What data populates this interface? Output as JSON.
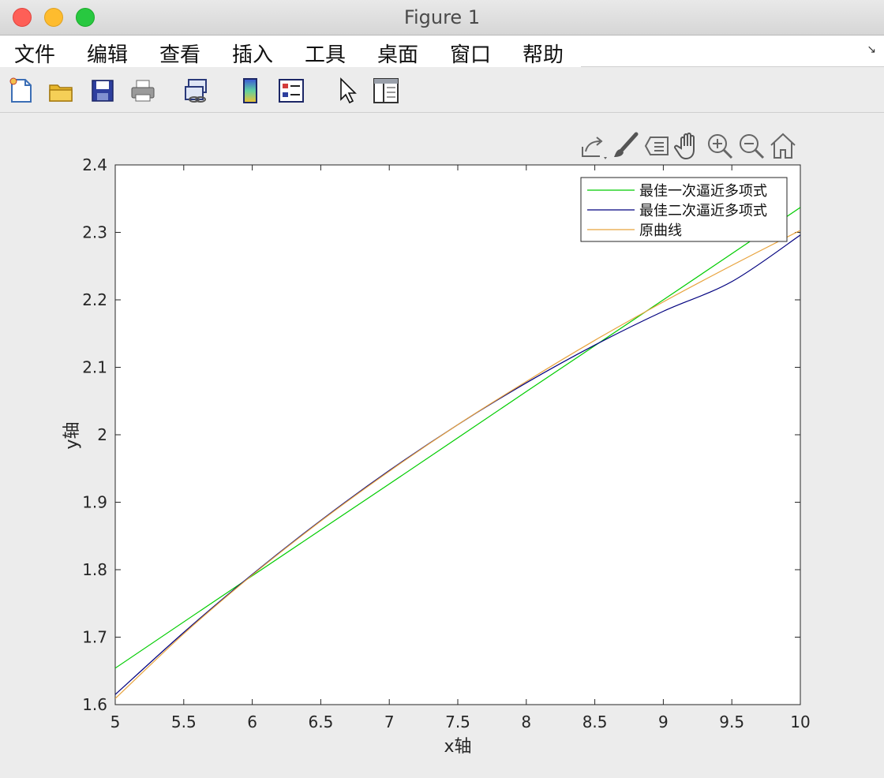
{
  "window": {
    "title": "Figure 1"
  },
  "menubar": {
    "items": [
      "文件",
      "编辑",
      "查看",
      "插入",
      "工具",
      "桌面",
      "窗口",
      "帮助"
    ],
    "dock_icon": "dock-arrow-icon"
  },
  "toolbar": {
    "buttons": [
      {
        "name": "new-figure-icon"
      },
      {
        "name": "open-file-icon"
      },
      {
        "name": "save-icon"
      },
      {
        "name": "print-icon"
      },
      {
        "name": "link-plot-icon"
      },
      {
        "name": "insert-colorbar-icon"
      },
      {
        "name": "insert-legend-icon"
      },
      {
        "name": "edit-plot-pointer-icon"
      },
      {
        "name": "property-inspector-icon"
      }
    ]
  },
  "axes_toolbar": [
    "export-icon",
    "brush-icon",
    "data-tips-icon",
    "pan-hand-icon",
    "zoom-in-icon",
    "zoom-out-icon",
    "home-icon"
  ],
  "chart_data": {
    "type": "line",
    "xlabel": "x轴",
    "ylabel": "y轴",
    "xlim": [
      5,
      10
    ],
    "ylim": [
      1.6,
      2.4
    ],
    "xticks": [
      5,
      5.5,
      6,
      6.5,
      7,
      7.5,
      8,
      8.5,
      9,
      9.5,
      10
    ],
    "xtick_labels": [
      "5",
      "5.5",
      "6",
      "6.5",
      "7",
      "7.5",
      "8",
      "8.5",
      "9",
      "9.5",
      "10"
    ],
    "yticks": [
      1.6,
      1.7,
      1.8,
      1.9,
      2,
      2.1,
      2.2,
      2.3,
      2.4
    ],
    "ytick_labels": [
      "1.6",
      "1.7",
      "1.8",
      "1.9",
      "2",
      "2.1",
      "2.2",
      "2.3",
      "2.4"
    ],
    "grid": false,
    "legend_position": "top-right",
    "series": [
      {
        "name": "最佳一次逼近多项式",
        "color": "#00cc00",
        "x": [
          5,
          6,
          7,
          8,
          9,
          10
        ],
        "y": [
          1.654,
          1.791,
          1.927,
          2.064,
          2.2,
          2.337
        ]
      },
      {
        "name": "最佳二次逼近多项式",
        "color": "#00007f",
        "x": [
          5,
          5.5,
          6,
          6.5,
          7,
          7.5,
          8,
          8.5,
          9,
          9.5,
          10
        ],
        "y": [
          1.615,
          1.707,
          1.793,
          1.873,
          1.947,
          2.015,
          2.077,
          2.133,
          2.183,
          2.227,
          2.296
        ]
      },
      {
        "name": "原曲线",
        "color": "#e8a33d",
        "x": [
          5,
          5.5,
          6,
          6.5,
          7,
          7.5,
          8,
          8.5,
          9,
          9.5,
          10
        ],
        "y": [
          1.609,
          1.705,
          1.792,
          1.872,
          1.946,
          2.015,
          2.079,
          2.14,
          2.197,
          2.251,
          2.303
        ]
      }
    ]
  }
}
